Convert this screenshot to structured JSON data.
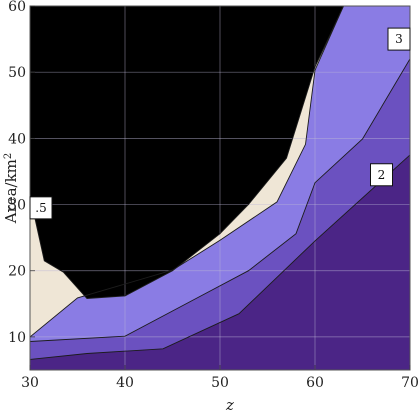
{
  "chart_data": {
    "type": "contour",
    "title": "",
    "xlabel": "z",
    "ylabel_main": "Area/km",
    "ylabel_sup": "2",
    "xlim": [
      30,
      70
    ],
    "ylim": [
      5,
      60
    ],
    "x_ticks": [
      30,
      40,
      50,
      60,
      70
    ],
    "y_ticks": [
      10,
      20,
      30,
      40,
      50,
      60
    ],
    "x_tick_labels": [
      "30",
      "40",
      "50",
      "60",
      "70"
    ],
    "y_tick_labels": [
      "10",
      "20",
      "30",
      "40",
      "50",
      "60"
    ],
    "grid": true,
    "contour_lines": [
      {
        "label": "",
        "x": [
          30,
          36,
          44,
          52,
          60,
          70
        ],
        "y": [
          6.6,
          7.5,
          8.2,
          13.5,
          24.5,
          37.5
        ]
      },
      {
        "label": "",
        "x": [
          30,
          40,
          48,
          53,
          58,
          60,
          65,
          70
        ],
        "y": [
          9.3,
          10.1,
          16.2,
          20,
          25.6,
          33.3,
          39.9,
          52
        ]
      },
      {
        "label": "",
        "x": [
          30,
          35,
          45,
          50,
          56,
          59,
          60,
          63,
          67,
          70
        ],
        "y": [
          10,
          15.9,
          20.1,
          24.6,
          30.4,
          39.1,
          50.3,
          60,
          67,
          72
        ]
      },
      {
        "label": "",
        "x": [
          30.5,
          31.5,
          33.5,
          36,
          40,
          45,
          50,
          53,
          57,
          60,
          63
        ],
        "y": [
          28,
          21.5,
          19.8,
          15.8,
          16.2,
          20,
          25.6,
          30,
          37,
          50.8,
          60
        ]
      }
    ],
    "labels": [
      {
        "text": "3",
        "x": 69,
        "y": 55
      },
      {
        "text": "2",
        "x": 67,
        "y": 34.5
      },
      {
        "text": ".5",
        "x": 30,
        "y": 29.5
      }
    ],
    "colors": {
      "region_1": "#4b2586",
      "region_2": "#6b51c0",
      "region_3": "#8a7ce4",
      "region_4": "#efe6d6",
      "line": "#1c1c1c",
      "grid": "#bdb8d6"
    }
  }
}
